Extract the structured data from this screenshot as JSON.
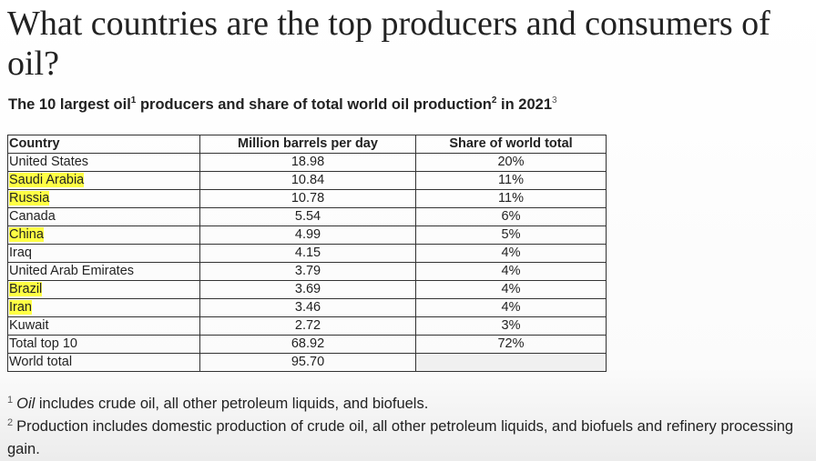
{
  "heading": "What countries are the top producers and consumers of oil?",
  "subtitle": {
    "part1": "The 10 largest oil",
    "sup1": "1",
    "part2": " producers and share of total world oil production",
    "sup2": "2",
    "part3": " in 2021",
    "sup3": "3"
  },
  "table": {
    "headers": [
      "Country",
      "Million barrels per day",
      "Share of world total"
    ],
    "rows": [
      {
        "country": "United States",
        "mbpd": "18.98",
        "share": "20%",
        "highlight": false
      },
      {
        "country": "Saudi Arabia",
        "mbpd": "10.84",
        "share": "11%",
        "highlight": true
      },
      {
        "country": "Russia",
        "mbpd": "10.78",
        "share": "11%",
        "highlight": true
      },
      {
        "country": "Canada",
        "mbpd": "5.54",
        "share": "6%",
        "highlight": false
      },
      {
        "country": "China",
        "mbpd": "4.99",
        "share": "5%",
        "highlight": true
      },
      {
        "country": "Iraq",
        "mbpd": "4.15",
        "share": "4%",
        "highlight": false
      },
      {
        "country": "United Arab Emirates",
        "mbpd": "3.79",
        "share": "4%",
        "highlight": false
      },
      {
        "country": "Brazil",
        "mbpd": "3.69",
        "share": "4%",
        "highlight": true
      },
      {
        "country": "Iran",
        "mbpd": "3.46",
        "share": "4%",
        "highlight": true
      },
      {
        "country": "Kuwait",
        "mbpd": "2.72",
        "share": "3%",
        "highlight": false
      },
      {
        "country": "Total top 10",
        "mbpd": "68.92",
        "share": "72%",
        "highlight": false
      },
      {
        "country": "World total",
        "mbpd": "95.70",
        "share": "",
        "highlight": false
      }
    ],
    "highlight_color": "#ffff44"
  },
  "footnotes": {
    "fn1": {
      "num": "1",
      "italic": "Oil",
      "text": " includes crude oil, all other petroleum liquids, and biofuels."
    },
    "fn2": {
      "num": "2",
      "text": "Production includes domestic production of crude oil, all other petroleum liquids, and biofuels and refinery processing gain."
    }
  }
}
